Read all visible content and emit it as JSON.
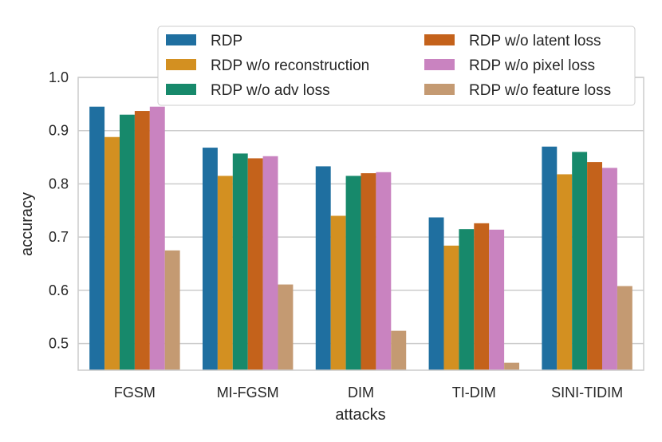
{
  "chart_data": {
    "type": "bar",
    "title": "",
    "xlabel": "attacks",
    "ylabel": "accuracy",
    "ylim": [
      0.45,
      1.0
    ],
    "yticks": [
      "0.5",
      "0.6",
      "0.7",
      "0.8",
      "0.9",
      "1.0"
    ],
    "grid": true,
    "legend_position": "top-right",
    "categories": [
      "FGSM",
      "MI-FGSM",
      "DIM",
      "TI-DIM",
      "SINI-TIDIM"
    ],
    "series": [
      {
        "name": "RDP",
        "color": "#1f6fa0",
        "values": [
          0.945,
          0.868,
          0.833,
          0.737,
          0.87
        ]
      },
      {
        "name": "RDP w/o reconstruction",
        "color": "#d39021",
        "values": [
          0.888,
          0.815,
          0.74,
          0.684,
          0.818
        ]
      },
      {
        "name": "RDP w/o adv loss",
        "color": "#17896b",
        "values": [
          0.93,
          0.857,
          0.815,
          0.715,
          0.86
        ]
      },
      {
        "name": "RDP w/o latent loss",
        "color": "#c4621b",
        "values": [
          0.937,
          0.848,
          0.82,
          0.726,
          0.841
        ]
      },
      {
        "name": "RDP w/o pixel loss",
        "color": "#c983c0",
        "values": [
          0.945,
          0.852,
          0.822,
          0.714,
          0.83
        ]
      },
      {
        "name": "RDP w/o feature loss",
        "color": "#c49a72",
        "values": [
          0.675,
          0.611,
          0.524,
          0.464,
          0.608
        ]
      }
    ]
  }
}
